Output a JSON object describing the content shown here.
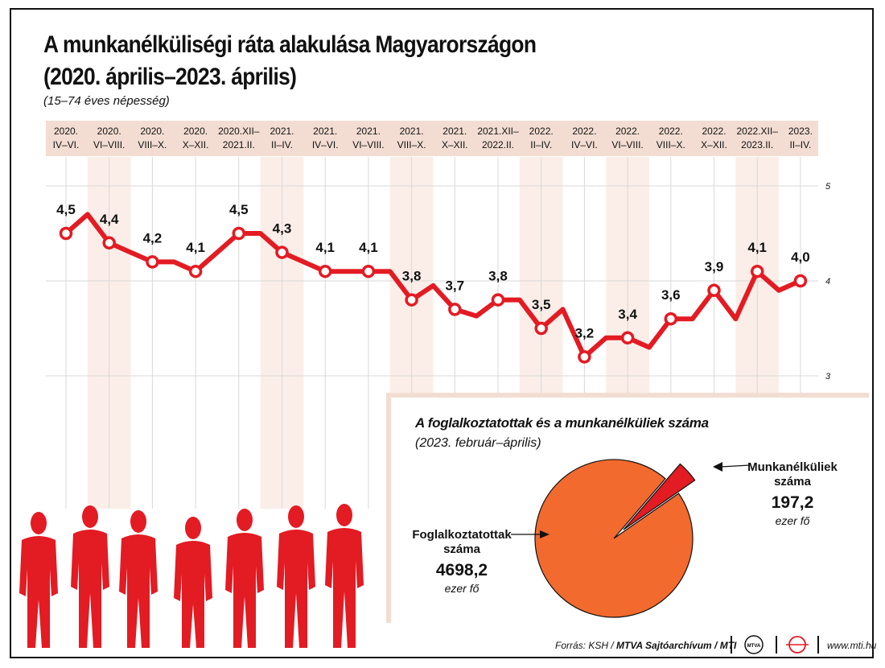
{
  "title_line1": "A munkanélküliségi ráta alakulása Magyarországon",
  "title_line2": "(2020. április–2023. április)",
  "subtitle": "(15–74 éves népesség)",
  "chart_data": [
    {
      "type": "line",
      "categories": [
        [
          "2020.",
          "IV–VI."
        ],
        [
          "2020.",
          "VI–VIII."
        ],
        [
          "2020.",
          "VIII–X."
        ],
        [
          "2020.",
          "X–XII."
        ],
        [
          "2020.XII–",
          "2021.II."
        ],
        [
          "2021.",
          "II–IV."
        ],
        [
          "2021.",
          "IV–VI."
        ],
        [
          "2021.",
          "VI–VIII."
        ],
        [
          "2021.",
          "VIII–X."
        ],
        [
          "2021.",
          "X–XII."
        ],
        [
          "2021.XII–",
          "2022.II."
        ],
        [
          "2022.",
          "II–IV."
        ],
        [
          "2022.",
          "IV–VI."
        ],
        [
          "2022.",
          "VI–VIII."
        ],
        [
          "2022.",
          "VIII–X."
        ],
        [
          "2022.",
          "X–XII."
        ],
        [
          "2022.XII–",
          "2023.II."
        ],
        [
          "2023.",
          "II–IV."
        ]
      ],
      "values": [
        4.5,
        4.4,
        4.2,
        4.1,
        4.5,
        4.3,
        4.1,
        4.1,
        3.8,
        3.7,
        3.8,
        3.5,
        3.2,
        3.4,
        3.6,
        3.9,
        4.1,
        4.0
      ],
      "value_labels": [
        "4,5",
        "4,4",
        "4,2",
        "4,1",
        "4,5",
        "4,3",
        "4,1",
        "4,1",
        "3,8",
        "3,7",
        "3,8",
        "3,5",
        "3,2",
        "3,4",
        "3,6",
        "3,9",
        "4,1",
        "4,0"
      ],
      "intermediate_values": [
        4.7,
        4.3,
        4.2,
        4.3,
        4.5,
        4.2,
        4.1,
        4.1,
        3.95,
        3.63,
        3.8,
        3.7,
        3.4,
        3.3,
        3.6,
        3.6,
        3.9,
        4.1,
        4.1
      ],
      "yticks": [
        3,
        4,
        5
      ],
      "ytick_labels": [
        "3",
        "4",
        "5"
      ],
      "ylim": [
        3,
        5
      ],
      "grid": true,
      "colors": {
        "line": "#e31b23",
        "marker_fill": "#ffffff",
        "header_bg": "#f3ddd2",
        "band": "#fbeee8",
        "grid": "#d8d8d8"
      }
    },
    {
      "type": "pie",
      "title": "A foglalkoztatottak és a munkanélküliek száma",
      "subtitle": "(2023. február–április)",
      "slices": [
        {
          "name": "Foglalkoztatottak száma",
          "value": 4698.2,
          "value_label": "4698,2",
          "unit": "ezer fő",
          "color": "#f26a2e"
        },
        {
          "name": "Munkanélküliek száma",
          "value": 197.2,
          "value_label": "197,2",
          "unit": "ezer fő",
          "color": "#e31b23"
        }
      ]
    }
  ],
  "labels": {
    "employed_line1": "Foglalkoztatottak",
    "employed_line2": "száma",
    "unemployed_line1": "Munkanélküliek",
    "unemployed_line2": "száma"
  },
  "footer": {
    "source_prefix": "Forrás: KSH /",
    "source_bold": "MTVA Sajtóarchívum / MTI",
    "logo_text": "MTVA",
    "website": "www.mti.hu"
  },
  "silhouette_color": "#e31b23"
}
